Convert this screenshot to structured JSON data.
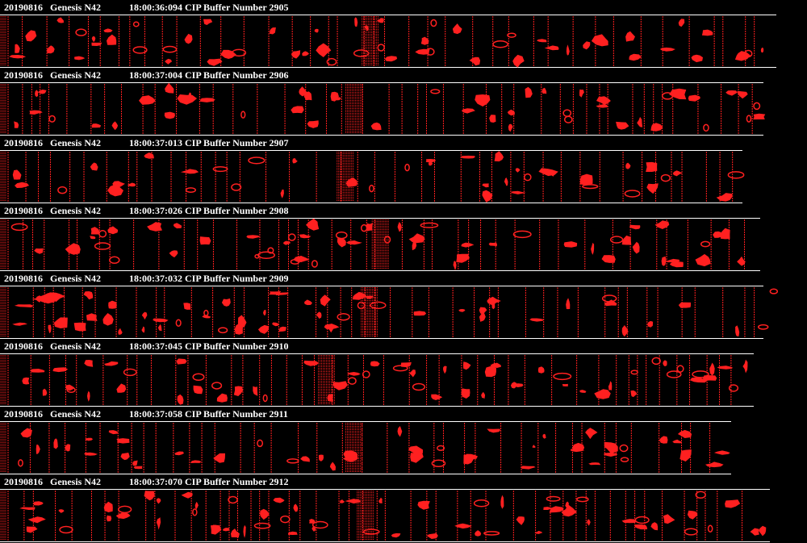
{
  "strips": [
    {
      "date": "20190816",
      "project": "Genesis N42",
      "info": "18:00:36:094 CIP Buffer Number 2905"
    },
    {
      "date": "20190816",
      "project": "Genesis N42",
      "info": "18:00:37:004 CIP Buffer Number 2906"
    },
    {
      "date": "20190816",
      "project": "Genesis N42",
      "info": "18:00:37:013 CIP Buffer Number 2907"
    },
    {
      "date": "20190816",
      "project": "Genesis N42",
      "info": "18:00:37:026 CIP Buffer Number 2908"
    },
    {
      "date": "20190816",
      "project": "Genesis N42",
      "info": "18:00:37:032 CIP Buffer Number 2909"
    },
    {
      "date": "20190816",
      "project": "Genesis N42",
      "info": "18:00:37:045 CIP Buffer Number 2910"
    },
    {
      "date": "20190816",
      "project": "Genesis N42",
      "info": "18:00:37:058 CIP Buffer Number 2911"
    },
    {
      "date": "20190816",
      "project": "Genesis N42",
      "info": "18:00:37:070 CIP Buffer Number 2912"
    }
  ]
}
